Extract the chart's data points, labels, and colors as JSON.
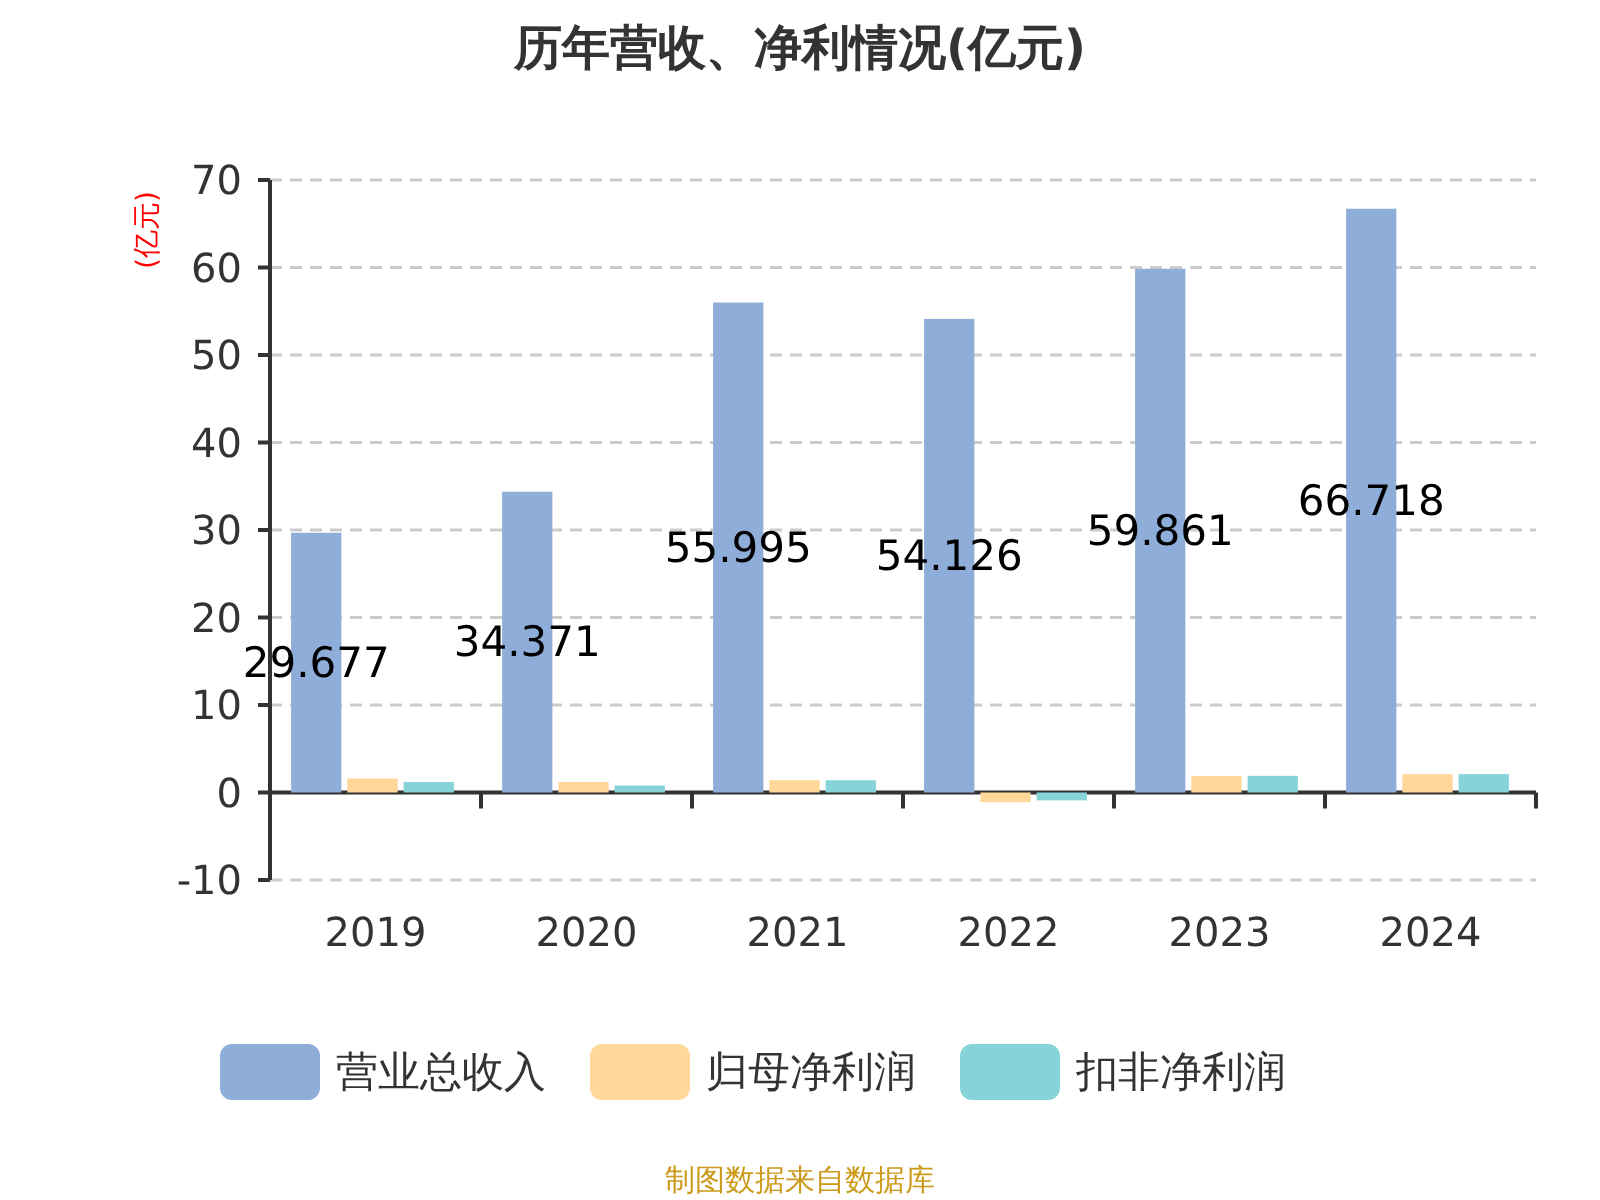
{
  "chart_data": {
    "type": "bar",
    "title": "历年营收、净利情况(亿元)",
    "ylabel": "(亿元)",
    "categories": [
      "2019",
      "2020",
      "2021",
      "2022",
      "2023",
      "2024"
    ],
    "series": [
      {
        "name": "营业总收入",
        "color": "#8eadd9",
        "values": [
          29.677,
          34.371,
          55.995,
          54.126,
          59.861,
          66.718
        ],
        "value_labels": [
          "29.677",
          "34.371",
          "55.995",
          "54.126",
          "59.861",
          "66.718"
        ]
      },
      {
        "name": "归母净利润",
        "color": "#ffd799",
        "values": [
          1.6,
          1.2,
          1.4,
          -1.1,
          1.9,
          2.1
        ]
      },
      {
        "name": "扣非净利润",
        "color": "#84d4d9",
        "values": [
          1.2,
          0.8,
          1.4,
          -0.9,
          1.9,
          2.1
        ]
      }
    ],
    "ylim": [
      -10,
      70
    ],
    "yticks": [
      -10,
      0,
      10,
      20,
      30,
      40,
      50,
      60,
      70
    ],
    "grid": "y",
    "legend": "bottom",
    "annotations": [
      "制图数据来自数据库"
    ]
  }
}
